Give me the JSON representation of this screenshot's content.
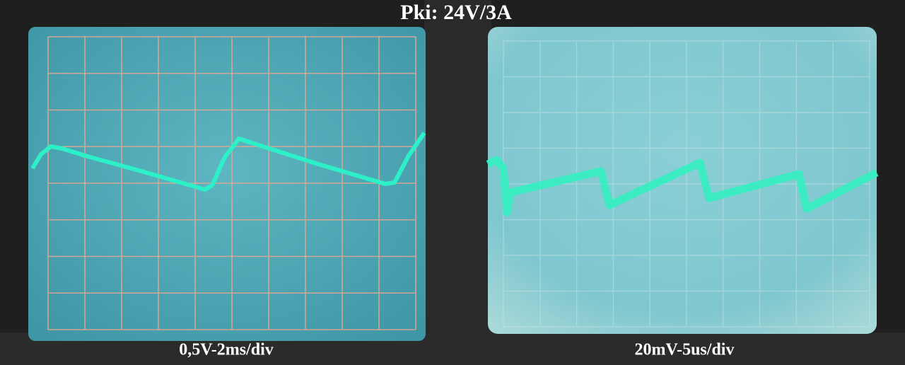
{
  "title": "Pki: 24V/3A",
  "panels": [
    {
      "caption": "0,5V-2ms/div"
    },
    {
      "caption": "20mV-5us/div"
    }
  ]
}
